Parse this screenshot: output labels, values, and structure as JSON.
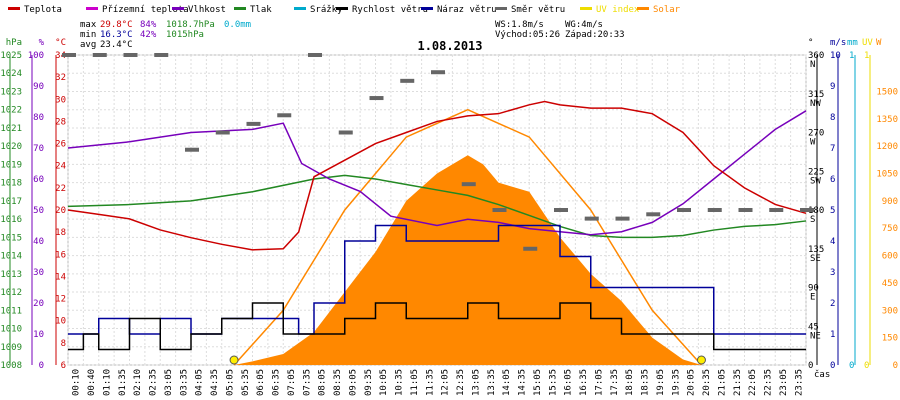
{
  "chart_data": {
    "type": "line",
    "title": "1.08.2013",
    "x_unit_label": "čas",
    "time_labels": [
      "00:10",
      "00:40",
      "01:10",
      "01:35",
      "02:10",
      "02:35",
      "03:05",
      "03:35",
      "04:05",
      "04:35",
      "05:05",
      "05:35",
      "06:05",
      "06:35",
      "07:05",
      "07:35",
      "08:05",
      "08:35",
      "09:05",
      "09:35",
      "10:05",
      "10:35",
      "11:05",
      "11:35",
      "12:05",
      "12:35",
      "13:05",
      "13:35",
      "14:05",
      "14:35",
      "15:05",
      "15:35",
      "16:05",
      "16:35",
      "17:05",
      "17:35",
      "18:05",
      "18:35",
      "19:05",
      "19:35",
      "20:05",
      "20:35",
      "21:05",
      "21:35",
      "22:05",
      "22:35",
      "23:05",
      "23:35"
    ],
    "legend": [
      {
        "name": "Teplota",
        "color": "#cc0000"
      },
      {
        "name": "Přízemní teplota",
        "color": "#cc00cc"
      },
      {
        "name": "Vlhkost",
        "color": "#7700bb"
      },
      {
        "name": "Tlak",
        "color": "#228822"
      },
      {
        "name": "Srážky",
        "color": "#00aacc"
      },
      {
        "name": "Rychlost větru",
        "color": "#000000"
      },
      {
        "name": "Náraz větru",
        "color": "#000099"
      },
      {
        "name": "Směr větru",
        "color": "#666666"
      },
      {
        "name": "UV index",
        "color": "#eedd00"
      },
      {
        "name": "Solar",
        "color": "#ff8800"
      }
    ],
    "stats": {
      "max_label": "max",
      "max_temp": "29.8°C",
      "max_hum": "84%",
      "max_press": "1018.7hPa",
      "max_rain": "0.0mm",
      "min_label": "min",
      "min_temp": "16.3°C",
      "min_hum": "42%",
      "min_press": "1015hPa",
      "avg_label": "avg",
      "avg_temp": "23.4°C",
      "ws": "WS:1.8m/s",
      "wg": "WG:4m/s",
      "sunrise": "Východ:05:26",
      "sunset": "Západ:20:33"
    },
    "axes": {
      "hpa": {
        "title": "hPa",
        "ticks": [
          "1025",
          "1024",
          "1023",
          "1022",
          "1021",
          "1020",
          "1019",
          "1018",
          "1017",
          "1016",
          "1015",
          "1014",
          "1013",
          "1012",
          "1011",
          "1010",
          "1009",
          "1008"
        ],
        "range": [
          1008,
          1025
        ]
      },
      "pct": {
        "title": "%",
        "ticks": [
          "100",
          "90",
          "80",
          "70",
          "60",
          "50",
          "40",
          "30",
          "20",
          "10",
          "0"
        ],
        "range": [
          0,
          100
        ]
      },
      "c": {
        "title": "°C",
        "ticks": [
          "34",
          "32",
          "30",
          "28",
          "26",
          "24",
          "22",
          "20",
          "18",
          "16",
          "14",
          "12",
          "10",
          "8",
          "6"
        ],
        "range": [
          6,
          34
        ]
      },
      "deg": {
        "title": "°",
        "ticks": [
          "360",
          "315",
          "270",
          "225",
          "180",
          "135",
          "90",
          "45",
          "0"
        ],
        "range": [
          0,
          360
        ]
      },
      "dir": {
        "ticks": [
          "N",
          "NW",
          "W",
          "SW",
          "S",
          "SE",
          "E",
          "NE"
        ]
      },
      "ms": {
        "title": "m/s",
        "ticks": [
          "10",
          "9",
          "8",
          "7",
          "6",
          "5",
          "4",
          "3",
          "2",
          "1",
          "0"
        ],
        "range": [
          0,
          10
        ]
      },
      "mm": {
        "title": "mm",
        "ticks": [
          "1",
          "0"
        ],
        "range": [
          0,
          1
        ]
      },
      "uv": {
        "title": "UV",
        "ticks": [
          "1",
          "0"
        ]
      },
      "w": {
        "title": "W",
        "ticks": [
          "1500",
          "1350",
          "1200",
          "1050",
          "900",
          "750",
          "600",
          "450",
          "300",
          "150",
          "0"
        ],
        "range": [
          0,
          1700
        ]
      }
    },
    "series": {
      "temperature_c": {
        "x": [
          0,
          1,
          2,
          3,
          4,
          5,
          6,
          7,
          7.5,
          8,
          9,
          10,
          11,
          12,
          13,
          14,
          15,
          15.5,
          16,
          17,
          18,
          19,
          20,
          21,
          22,
          23,
          24
        ],
        "y": [
          20,
          19.6,
          19.2,
          18.2,
          17.5,
          16.9,
          16.4,
          16.5,
          18,
          23,
          24.5,
          26,
          27,
          28,
          28.5,
          28.7,
          29.5,
          29.8,
          29.5,
          29.2,
          29.2,
          28.7,
          27,
          24,
          22,
          20.5,
          19.7
        ]
      },
      "humidity_pct": {
        "x": [
          0,
          2,
          4,
          6,
          7,
          7.6,
          8.5,
          9.5,
          10.5,
          12,
          13,
          14,
          15,
          16,
          17,
          18,
          19,
          20,
          21,
          22,
          23,
          24
        ],
        "y": [
          70,
          72,
          75,
          76,
          78,
          65,
          60,
          56,
          48,
          45,
          47,
          46,
          44,
          43,
          42,
          43,
          46,
          52,
          60,
          68,
          76,
          82
        ]
      },
      "pressure_hpa": {
        "x": [
          0,
          2,
          4,
          6,
          8,
          9,
          10,
          11,
          12,
          13,
          14,
          15,
          16,
          17,
          18,
          19,
          20,
          21,
          22,
          23,
          24
        ],
        "y": [
          1016.7,
          1016.8,
          1017,
          1017.5,
          1018.2,
          1018.4,
          1018.2,
          1017.9,
          1017.6,
          1017.3,
          1016.8,
          1016.2,
          1015.6,
          1015.1,
          1015,
          1015,
          1015.1,
          1015.4,
          1015.6,
          1015.7,
          1015.9
        ]
      },
      "wind_speed_ms": {
        "x": [
          0,
          0.5,
          1,
          2,
          3,
          4,
          5,
          6,
          7,
          8,
          9,
          10,
          11,
          12,
          13,
          14,
          15,
          16,
          17,
          18,
          19,
          20,
          21,
          22,
          23,
          24
        ],
        "y": [
          0.5,
          1,
          0.5,
          1.5,
          0.5,
          1,
          1.5,
          2,
          1,
          1,
          1.5,
          2,
          1.5,
          1.5,
          2,
          1.5,
          1.5,
          2,
          1.5,
          1,
          1,
          1,
          0.5,
          0.5,
          0.5,
          0.5
        ]
      },
      "wind_gust_ms": {
        "x": [
          0,
          1,
          2,
          3,
          4,
          5,
          6,
          7,
          7.5,
          8,
          9,
          10,
          11,
          12,
          13,
          14,
          15,
          16,
          17,
          18,
          19,
          20,
          21,
          22,
          23,
          24
        ],
        "y": [
          1,
          1.5,
          1,
          1.5,
          1,
          1.5,
          1.5,
          1.5,
          1,
          2,
          4,
          4.5,
          4,
          4,
          4,
          4.5,
          4.5,
          3.5,
          2.5,
          2.5,
          2.5,
          2.5,
          1,
          1,
          1,
          1
        ]
      },
      "wind_dir_deg": {
        "x": [
          0,
          1,
          2,
          3,
          4,
          5,
          6,
          7,
          8,
          9,
          10,
          11,
          12,
          13,
          14,
          15,
          16,
          17,
          18,
          19,
          20,
          21,
          22,
          23,
          24
        ],
        "y": [
          360,
          360,
          360,
          360,
          250,
          270,
          280,
          290,
          360,
          270,
          310,
          330,
          340,
          210,
          180,
          135,
          180,
          170,
          170,
          175,
          180,
          180,
          180,
          180,
          180
        ]
      },
      "solar_w": {
        "x": [
          5.4,
          6,
          7,
          8,
          9,
          10,
          11,
          12,
          13,
          13.5,
          14,
          15,
          16,
          17,
          18,
          19,
          20,
          20.6
        ],
        "y": [
          0,
          20,
          60,
          180,
          400,
          620,
          900,
          1050,
          1150,
          1100,
          1000,
          950,
          700,
          500,
          350,
          150,
          30,
          0
        ]
      },
      "solar_max_w": {
        "x": [
          5.4,
          7,
          9,
          11,
          13,
          15,
          17,
          19,
          20.6
        ],
        "y": [
          0,
          300,
          850,
          1250,
          1400,
          1250,
          850,
          300,
          0
        ]
      }
    }
  }
}
